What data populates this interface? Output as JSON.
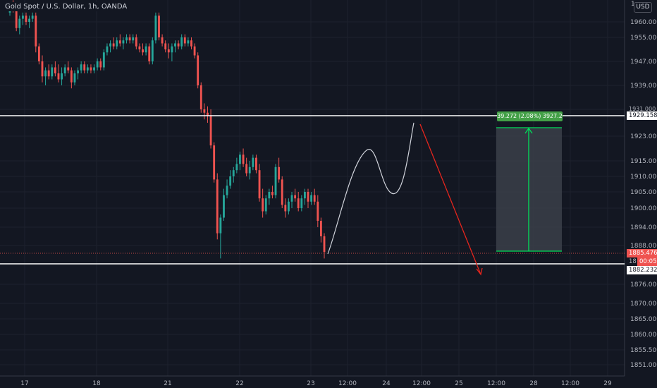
{
  "header": {
    "symbol_label": "Gold Spot / U.S. Dollar, 1h, OANDA",
    "currency_button": "USD",
    "top_partial_tick": "1"
  },
  "price_tags": {
    "level_high": "1929.158",
    "current_price": "1885.476",
    "countdown": "00:05",
    "level_low": "1882.232",
    "hidden_partial_1931": "1931.000",
    "hidden_partial_1882": "18"
  },
  "measure_label": "39.272 (2.08%) 3927.2",
  "colors": {
    "background": "#131722",
    "up": "#26a69a",
    "down": "#ef5350",
    "level_line": "#ffffff",
    "forecast_down": "#e5251d",
    "measure_fill": "#3b3f49",
    "measure_arrow": "#00e05a",
    "measure_label_bg": "#43a047"
  },
  "chart_data": {
    "type": "candlestick",
    "instrument": "Gold Spot / U.S. Dollar",
    "timeframe": "1h",
    "source": "OANDA",
    "y_axis": {
      "side": "right",
      "ticks": [
        1960.0,
        1955.0,
        1947.0,
        1939.0,
        1931.0,
        1923.0,
        1915.0,
        1910.0,
        1905.0,
        1900.0,
        1894.0,
        1888.0,
        1876.0,
        1870.0,
        1865.0,
        1860.0,
        1855.5,
        1851.0
      ]
    },
    "x_axis": {
      "ticks": [
        "17",
        "18",
        "21",
        "22",
        "23",
        "12:00",
        "24",
        "12:00",
        "25",
        "12:00",
        "28",
        "12:00",
        "29"
      ]
    },
    "levels": [
      1929.158,
      1882.232
    ],
    "current_price": 1885.476,
    "candles": [
      [
        1963,
        1966,
        1962,
        1965
      ],
      [
        1965,
        1967,
        1963,
        1964
      ],
      [
        1964,
        1965,
        1957,
        1958
      ],
      [
        1958,
        1962,
        1956,
        1961
      ],
      [
        1961,
        1963,
        1959,
        1962
      ],
      [
        1962,
        1963,
        1959,
        1960
      ],
      [
        1960,
        1962,
        1958,
        1961
      ],
      [
        1961,
        1963,
        1960,
        1962
      ],
      [
        1962,
        1963,
        1950,
        1952
      ],
      [
        1952,
        1953,
        1946,
        1947
      ],
      [
        1947,
        1949,
        1940,
        1942
      ],
      [
        1942,
        1945,
        1939,
        1944
      ],
      [
        1944,
        1946,
        1941,
        1942
      ],
      [
        1942,
        1946,
        1941,
        1945
      ],
      [
        1945,
        1947,
        1942,
        1943
      ],
      [
        1943,
        1946,
        1940,
        1941
      ],
      [
        1941,
        1945,
        1939,
        1943
      ],
      [
        1943,
        1946,
        1942,
        1945
      ],
      [
        1945,
        1947,
        1943,
        1944
      ],
      [
        1944,
        1945,
        1938,
        1940
      ],
      [
        1940,
        1944,
        1939,
        1943
      ],
      [
        1943,
        1945,
        1941,
        1944
      ],
      [
        1944,
        1947,
        1943,
        1946
      ],
      [
        1946,
        1947,
        1943,
        1944
      ],
      [
        1944,
        1946,
        1943,
        1945
      ],
      [
        1945,
        1946,
        1943,
        1944
      ],
      [
        1944,
        1946,
        1943,
        1945
      ],
      [
        1945,
        1948,
        1944,
        1947
      ],
      [
        1947,
        1948,
        1944,
        1945
      ],
      [
        1945,
        1951,
        1944,
        1950
      ],
      [
        1950,
        1953,
        1949,
        1952
      ],
      [
        1952,
        1954,
        1950,
        1953
      ],
      [
        1953,
        1955,
        1951,
        1952
      ],
      [
        1952,
        1955,
        1951,
        1954
      ],
      [
        1954,
        1956,
        1952,
        1953
      ],
      [
        1953,
        1955,
        1951,
        1954
      ],
      [
        1954,
        1956,
        1953,
        1955
      ],
      [
        1955,
        1956,
        1953,
        1954
      ],
      [
        1954,
        1956,
        1953,
        1955
      ],
      [
        1955,
        1956,
        1951,
        1952
      ],
      [
        1952,
        1953,
        1950,
        1951
      ],
      [
        1951,
        1953,
        1949,
        1950
      ],
      [
        1950,
        1953,
        1949,
        1952
      ],
      [
        1952,
        1953,
        1946,
        1947
      ],
      [
        1947,
        1955,
        1946,
        1954
      ],
      [
        1954,
        1963,
        1953,
        1962
      ],
      [
        1962,
        1963,
        1954,
        1955
      ],
      [
        1955,
        1956,
        1952,
        1953
      ],
      [
        1953,
        1954,
        1950,
        1951
      ],
      [
        1951,
        1953,
        1948,
        1950
      ],
      [
        1950,
        1953,
        1947,
        1952
      ],
      [
        1952,
        1954,
        1950,
        1953
      ],
      [
        1953,
        1954,
        1951,
        1952
      ],
      [
        1952,
        1956,
        1951,
        1955
      ],
      [
        1955,
        1956,
        1952,
        1953
      ],
      [
        1953,
        1955,
        1952,
        1954
      ],
      [
        1954,
        1955,
        1951,
        1952
      ],
      [
        1952,
        1953,
        1948,
        1949
      ],
      [
        1949,
        1950,
        1938,
        1939
      ],
      [
        1939,
        1940,
        1930,
        1931
      ],
      [
        1931,
        1933,
        1928,
        1930
      ],
      [
        1930,
        1932,
        1927,
        1929
      ],
      [
        1929,
        1931,
        1919,
        1920
      ],
      [
        1920,
        1921,
        1908,
        1909
      ],
      [
        1909,
        1911,
        1890,
        1892
      ],
      [
        1892,
        1898,
        1884,
        1897
      ],
      [
        1897,
        1906,
        1896,
        1904
      ],
      [
        1904,
        1909,
        1903,
        1907
      ],
      [
        1907,
        1912,
        1906,
        1910
      ],
      [
        1910,
        1913,
        1908,
        1912
      ],
      [
        1912,
        1916,
        1911,
        1914
      ],
      [
        1914,
        1918,
        1912,
        1917
      ],
      [
        1917,
        1919,
        1913,
        1914
      ],
      [
        1914,
        1916,
        1910,
        1911
      ],
      [
        1911,
        1915,
        1909,
        1913
      ],
      [
        1913,
        1917,
        1912,
        1916
      ],
      [
        1916,
        1917,
        1911,
        1912
      ],
      [
        1912,
        1914,
        1902,
        1903
      ],
      [
        1903,
        1906,
        1897,
        1899
      ],
      [
        1899,
        1904,
        1898,
        1903
      ],
      [
        1903,
        1906,
        1901,
        1905
      ],
      [
        1905,
        1907,
        1903,
        1904
      ],
      [
        1904,
        1914,
        1903,
        1913
      ],
      [
        1913,
        1916,
        1908,
        1909
      ],
      [
        1909,
        1910,
        1900,
        1901
      ],
      [
        1901,
        1903,
        1897,
        1899
      ],
      [
        1899,
        1903,
        1898,
        1902
      ],
      [
        1902,
        1905,
        1900,
        1904
      ],
      [
        1904,
        1906,
        1902,
        1903
      ],
      [
        1903,
        1905,
        1899,
        1900
      ],
      [
        1900,
        1904,
        1899,
        1903
      ],
      [
        1903,
        1906,
        1901,
        1905
      ],
      [
        1905,
        1906,
        1900,
        1902
      ],
      [
        1902,
        1905,
        1901,
        1904
      ],
      [
        1904,
        1906,
        1901,
        1902
      ],
      [
        1902,
        1904,
        1894,
        1896
      ],
      [
        1896,
        1897,
        1889,
        1891
      ],
      [
        1891,
        1892,
        1884,
        1886
      ]
    ]
  }
}
